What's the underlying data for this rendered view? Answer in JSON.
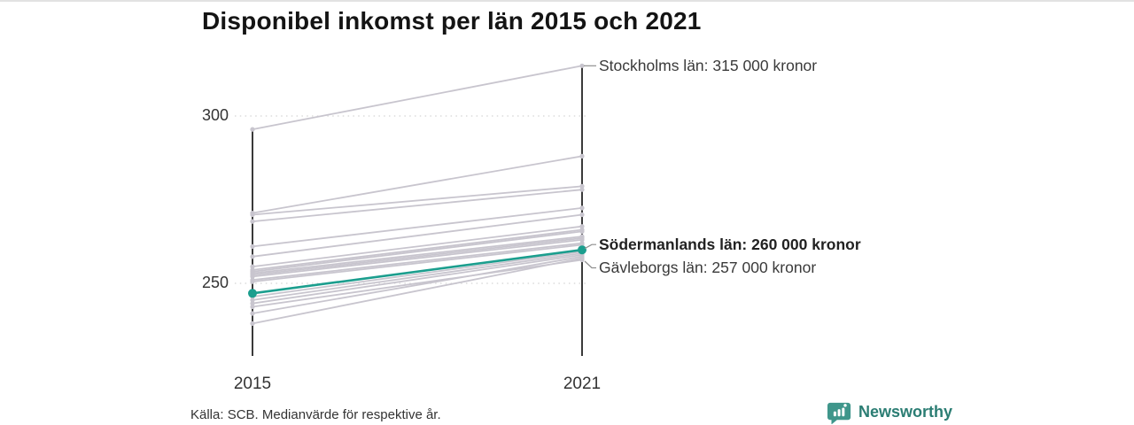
{
  "title": "Disponibel inkomst per län 2015 och 2021",
  "source_note": "Källa: SCB. Medianvärde för respektive år.",
  "branding": {
    "name": "Newsworthy",
    "icon": "newsworthy-speech-bubble-bar-chart-icon",
    "text_color": "#2b7d73",
    "icon_color": "#3f968b"
  },
  "colors": {
    "highlight_teal": "#1b9e8e",
    "gray_line": "#c8c5ce",
    "axis": "#3a3a3a",
    "gridline": "#dbdbdb",
    "connector": "#8f8f8f"
  },
  "chart_data": {
    "type": "line",
    "subtype": "slopegraph",
    "title": "Disponibel inkomst per län 2015 och 2021",
    "x": [
      2015,
      2021
    ],
    "x_tick_labels": [
      "2015",
      "2021"
    ],
    "y_ticks": [
      300,
      250
    ],
    "y_tick_labels": [
      "300",
      "250"
    ],
    "ylim": [
      228,
      320
    ],
    "grid": "dotted horizontal lines at y ticks",
    "legend": "none",
    "unit": "kronor (tusental)",
    "annotations": [
      {
        "series": "Stockholms län",
        "label": "Stockholms län: 315 000 kronor",
        "value_2021": 315,
        "bold": false,
        "label_dy": 0
      },
      {
        "series": "Södermanlands län",
        "label": "Södermanlands län: 260 000 kronor",
        "value_2021": 260,
        "bold": true,
        "label_dy": -6
      },
      {
        "series": "Gävleborgs län",
        "label": "Gävleborgs län: 257 000 kronor",
        "value_2021": 257,
        "bold": false,
        "label_dy": 9
      }
    ],
    "series": [
      {
        "name": "Stockholms län",
        "values": [
          296,
          315
        ],
        "highlighted": false
      },
      {
        "name": "Södermanlands län",
        "values": [
          247,
          260
        ],
        "highlighted": true
      },
      {
        "name": "Gävleborgs län",
        "values": [
          243,
          257
        ],
        "highlighted": false
      }
    ],
    "other_lines": [
      [
        271,
        288
      ],
      [
        270.5,
        279
      ],
      [
        268.5,
        278
      ],
      [
        261,
        272.5
      ],
      [
        258,
        270.5
      ],
      [
        255,
        267
      ],
      [
        254,
        266
      ],
      [
        253.5,
        265.5
      ],
      [
        253,
        264
      ],
      [
        252.5,
        263.5
      ],
      [
        252,
        263
      ],
      [
        251,
        262
      ],
      [
        250.5,
        261.5
      ],
      [
        246,
        259.5
      ],
      [
        245,
        259
      ],
      [
        244,
        258.5
      ],
      [
        241,
        258
      ],
      [
        238,
        257.5
      ]
    ]
  }
}
